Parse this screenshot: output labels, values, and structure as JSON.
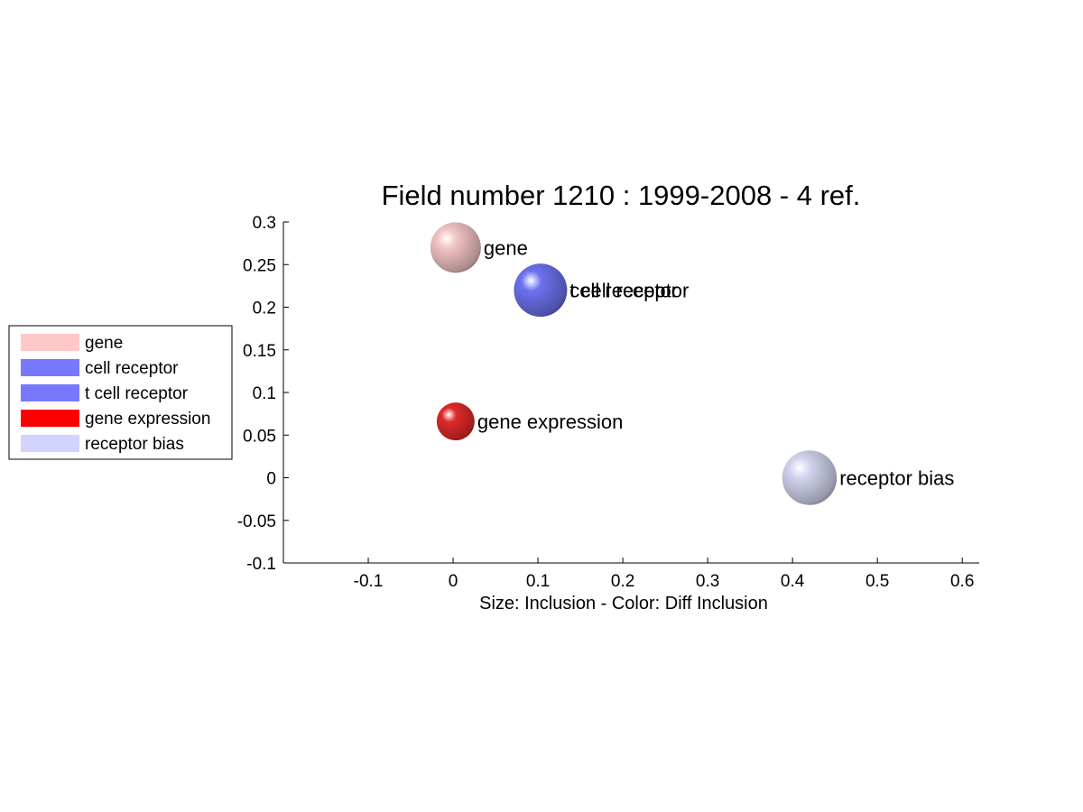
{
  "chart_data": {
    "type": "scatter",
    "title": "Field number 1210 : 1999-2008  - 4 ref.",
    "xlabel": "Size: Inclusion - Color: Diff Inclusion",
    "ylabel": "",
    "xlim": [
      -0.2,
      0.62
    ],
    "ylim": [
      -0.1,
      0.3
    ],
    "xticks": [
      -0.1,
      0,
      0.1,
      0.2,
      0.3,
      0.4,
      0.5,
      0.6
    ],
    "yticks": [
      -0.1,
      -0.05,
      0,
      0.05,
      0.1,
      0.15,
      0.2,
      0.25,
      0.3
    ],
    "xtick_labels": [
      "-0.1",
      "0",
      "0.1",
      "0.2",
      "0.3",
      "0.4",
      "0.5",
      "0.6"
    ],
    "ytick_labels": [
      "-0.1",
      "-0.05",
      "0",
      "0.05",
      "0.1",
      "0.15",
      "0.2",
      "0.25",
      "0.3"
    ],
    "grid": false,
    "legend_position": "left",
    "points": [
      {
        "label": "gene",
        "x": 0.003,
        "y": 0.27,
        "size": 1.0,
        "color": "#f2c4c4"
      },
      {
        "label": "cell receptor",
        "x": 0.103,
        "y": 0.22,
        "size": 1.05,
        "color": "#6c72ee"
      },
      {
        "label": "t cell receptor",
        "x": 0.103,
        "y": 0.22,
        "size": 1.05,
        "color": "#6c72ee"
      },
      {
        "label": "gene expression",
        "x": 0.003,
        "y": 0.066,
        "size": 0.75,
        "color": "#e02a2a"
      },
      {
        "label": "receptor bias",
        "x": 0.42,
        "y": 0.0,
        "size": 1.08,
        "color": "#d2d4ee"
      }
    ],
    "legend": [
      {
        "label": "gene",
        "color": "#ffc8c8"
      },
      {
        "label": "cell receptor",
        "color": "#7878ff"
      },
      {
        "label": "t cell receptor",
        "color": "#7878ff"
      },
      {
        "label": "gene expression",
        "color": "#ff0000"
      },
      {
        "label": "receptor bias",
        "color": "#d2d4ff"
      }
    ]
  }
}
